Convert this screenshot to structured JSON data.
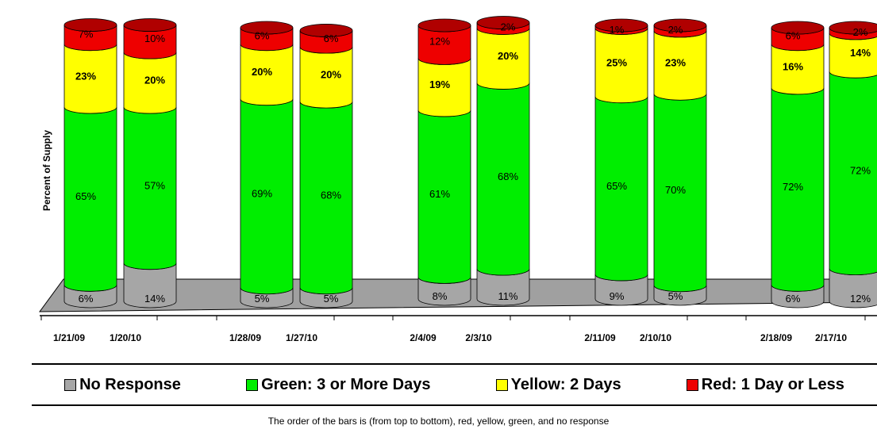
{
  "chart_data": {
    "type": "bar",
    "stacked": true,
    "orientation": "vertical",
    "categories": [
      "1/21/09",
      "1/20/10",
      "1/28/09",
      "1/27/10",
      "2/4/09",
      "2/3/10",
      "2/11/09",
      "2/10/10",
      "2/18/09",
      "2/17/10"
    ],
    "series": [
      {
        "name": "No Response",
        "color": "#a6a6a6",
        "values": [
          6,
          14,
          5,
          5,
          8,
          11,
          9,
          5,
          6,
          12
        ],
        "labels": [
          "6%",
          "14%",
          "5%",
          "5%",
          "8%",
          "11%",
          "9%",
          "5%",
          "6%",
          "12%"
        ]
      },
      {
        "name": "Green: 3 or More Days",
        "color": "#00ee00",
        "values": [
          65,
          57,
          69,
          68,
          61,
          68,
          65,
          70,
          72,
          72
        ],
        "labels": [
          "65%",
          "57%",
          "69%",
          "68%",
          "61%",
          "68%",
          "65%",
          "70%",
          "72%",
          "72%"
        ]
      },
      {
        "name": "Yellow: 2 Days",
        "color": "#ffff00",
        "values": [
          23,
          20,
          20,
          20,
          19,
          20,
          25,
          23,
          16,
          14
        ],
        "labels": [
          "23%",
          "20%",
          "20%",
          "20%",
          "19%",
          "20%",
          "25%",
          "23%",
          "16%",
          "14%"
        ]
      },
      {
        "name": "Red: 1 Day or Less",
        "color": "#ee0000",
        "values": [
          7,
          10,
          6,
          6,
          12,
          2,
          1,
          2,
          6,
          2
        ],
        "labels": [
          "7%",
          "10%",
          "6%",
          "6%",
          "12%",
          "2%",
          "1%",
          "2%",
          "6%",
          "2%"
        ]
      }
    ],
    "ylabel": "Percent of Supply",
    "xlabel": "",
    "ylim": [
      0,
      100
    ],
    "legend_position": "bottom",
    "note": "The order of the bars is (from top to bottom), red, yellow, green, and no response"
  },
  "legend": [
    {
      "label": "No Response",
      "color": "#a6a6a6"
    },
    {
      "label": "Green: 3 or More Days",
      "color": "#00ee00"
    },
    {
      "label": "Yellow: 2 Days",
      "color": "#ffff00"
    },
    {
      "label": "Red: 1 Day or Less",
      "color": "#ee0000"
    }
  ]
}
